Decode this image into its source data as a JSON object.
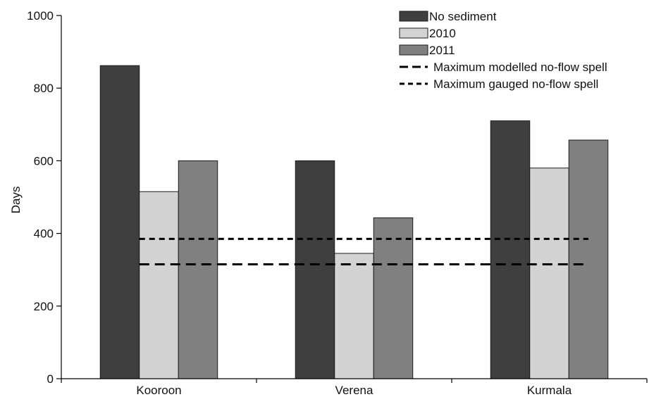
{
  "chart_data": {
    "type": "bar",
    "title": "",
    "xlabel": "",
    "ylabel": "Days",
    "ylim": [
      0,
      1000
    ],
    "yticks": [
      0,
      200,
      400,
      600,
      800,
      1000
    ],
    "categories": [
      "Kooroon",
      "Verena",
      "Kurmala"
    ],
    "series": [
      {
        "name": "No sediment",
        "values": [
          862,
          600,
          710
        ],
        "color": "#3f3f3f"
      },
      {
        "name": "2010",
        "values": [
          515,
          345,
          580
        ],
        "color": "#d3d3d3"
      },
      {
        "name": "2011",
        "values": [
          600,
          443,
          657
        ],
        "color": "#808080"
      }
    ],
    "reference_lines": [
      {
        "name": "Maximum modelled no-flow spell",
        "value": 315,
        "style": "long-dash"
      },
      {
        "name": "Maximum gauged no-flow spell",
        "value": 385,
        "style": "short-dash"
      }
    ],
    "grid": false,
    "legend_position": "top-right"
  }
}
